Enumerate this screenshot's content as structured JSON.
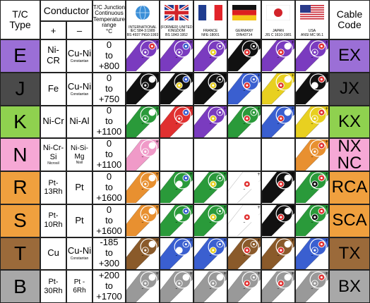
{
  "header": {
    "tc_type": "T/C\nType",
    "conductor": "Conductor",
    "plus": "+",
    "minus": "–",
    "range": "T/C Junction\nContinuous\nTemperature\nrange\n°C",
    "cable_code": "Cable\nCode"
  },
  "standards": [
    {
      "name": "INTERNATIONAL",
      "ref": "IEC 584-3:1989\nBS 4937 PtG0:1993",
      "icon": "globe-icon"
    },
    {
      "name": "(FORMER) UNITED KINGDOM",
      "ref": "BS 1843:1952",
      "icon": "uk-flag-icon"
    },
    {
      "name": "FRANCE",
      "ref": "NFE-18001",
      "icon": "france-flag-icon"
    },
    {
      "name": "GERMANY",
      "ref": "DIN43714",
      "icon": "germany-flag-icon"
    },
    {
      "name": "JAPAN",
      "ref": "JIS C 1610-1981",
      "icon": "japan-flag-icon"
    },
    {
      "name": "USA",
      "ref": "ANSI MC 96.1",
      "icon": "usa-flag-icon"
    }
  ],
  "rows": [
    {
      "type": "E",
      "plus": "Ni-CR",
      "plus_sub": "",
      "minus": "Cu-Ni",
      "minus_sub": "Constantan",
      "range": "0\nto\n+800",
      "code": "EX",
      "color": "#9b6fd6"
    },
    {
      "type": "J",
      "plus": "Fe",
      "plus_sub": "",
      "minus": "Cu-Ni",
      "minus_sub": "Constantan",
      "range": "0\nto\n+750",
      "code": "JX",
      "color": "#4a4a4a"
    },
    {
      "type": "K",
      "plus": "Ni-Cr",
      "plus_sub": "",
      "minus": "Ni-Al",
      "minus_sub": "",
      "range": "0\nto\n+1100",
      "code": "KX",
      "color": "#8fd14f"
    },
    {
      "type": "N",
      "plus": "Ni-Cr-Si",
      "plus_sub": "Nicrosil",
      "minus": "Ni-Si-Mg",
      "minus_sub": "Nisil",
      "range": "0\nto\n+1100",
      "code": "NX\nNC",
      "color": "#f6a8d5"
    },
    {
      "type": "R",
      "plus": "Pt-\n13Rh",
      "plus_sub": "",
      "minus": "Pt",
      "minus_sub": "",
      "range": "0\nto\n+1600",
      "code": "RCA",
      "color": "#f0a03e"
    },
    {
      "type": "S",
      "plus": "Pt-\n10Rh",
      "plus_sub": "",
      "minus": "Pt",
      "minus_sub": "",
      "range": "0\nto\n+1600",
      "code": "SCA",
      "color": "#f0a03e"
    },
    {
      "type": "T",
      "plus": "Cu",
      "plus_sub": "",
      "minus": "Cu-Ni",
      "minus_sub": "Constantan",
      "range": "-185\nto\n+300",
      "code": "TX",
      "color": "#9b6a3a"
    },
    {
      "type": "B",
      "plus": "Pt-\n30Rh",
      "plus_sub": "",
      "minus": "Pt -\n6Rh",
      "minus_sub": "",
      "range": "+200\nto\n+1700",
      "code": "BX",
      "color": "#a8a8a8"
    }
  ],
  "cables": [
    [
      [
        "#7a3bbf",
        "#7a3bbf",
        "#e03030"
      ],
      [
        "#7a3bbf",
        "#7a3bbf",
        "#3a5fd0"
      ],
      [
        "#7a3bbf",
        "#e8d020",
        "#7a3bbf"
      ],
      [
        "#111",
        "#e03030",
        "#111"
      ],
      [
        "#7a3bbf",
        "#e03030",
        "#fff"
      ],
      [
        "#7a3bbf",
        "#7a3bbf",
        "#e03030"
      ]
    ],
    [
      [
        "#111",
        "#111",
        "#fff"
      ],
      [
        "#111",
        "#e8d020",
        "#3a5fd0"
      ],
      [
        "#111",
        "#e8d020",
        "#111"
      ],
      [
        "#3a5fd0",
        "#e03030",
        "#3a5fd0"
      ],
      [
        "#e8d020",
        "#e03030",
        "#fff"
      ],
      [
        "#111",
        "#fff",
        "#e03030"
      ]
    ],
    [
      [
        "#2a9a3a",
        "#2a9a3a",
        "#fff"
      ],
      [
        "#e03030",
        "#e03030",
        "#3a5fd0"
      ],
      [
        "#7a3bbf",
        "#e8d020",
        "#7a3bbf"
      ],
      [
        "#2a9a3a",
        "#e03030",
        "#2a9a3a"
      ],
      [
        "#3a5fd0",
        "#e03030",
        "#fff"
      ],
      [
        "#e8d020",
        "#e8d020",
        "#e03030"
      ]
    ],
    [
      [
        "#f09ac8",
        "#f09ac8",
        "#fff"
      ],
      null,
      null,
      null,
      null,
      [
        "#e89030",
        "#e89030",
        "#e03030"
      ]
    ],
    [
      [
        "#e89030",
        "#e89030",
        "#fff"
      ],
      [
        "#2a9a3a",
        "#fff",
        "#3a5fd0"
      ],
      [
        "#2a9a3a",
        "#e8d020",
        "#2a9a3a"
      ],
      [
        "#fff",
        "#e03030",
        "#fff"
      ],
      [
        "#111",
        "#e03030",
        "#fff"
      ],
      [
        "#2a9a3a",
        "#111",
        "#e03030"
      ]
    ],
    [
      [
        "#e89030",
        "#e89030",
        "#fff"
      ],
      [
        "#2a9a3a",
        "#fff",
        "#3a5fd0"
      ],
      [
        "#2a9a3a",
        "#e8d020",
        "#2a9a3a"
      ],
      [
        "#fff",
        "#e03030",
        "#fff"
      ],
      [
        "#111",
        "#e03030",
        "#fff"
      ],
      [
        "#2a9a3a",
        "#111",
        "#e03030"
      ]
    ],
    [
      [
        "#8a5a2a",
        "#8a5a2a",
        "#fff"
      ],
      [
        "#3a5fd0",
        "#fff",
        "#3a5fd0"
      ],
      [
        "#3a5fd0",
        "#e8d020",
        "#3a5fd0"
      ],
      [
        "#8a5a2a",
        "#e03030",
        "#8a5a2a"
      ],
      [
        "#8a5a2a",
        "#e03030",
        "#fff"
      ],
      [
        "#3a5fd0",
        "#3a5fd0",
        "#e03030"
      ]
    ],
    [
      [
        "#999",
        "#999",
        "#fff"
      ],
      [
        "#999",
        "#999",
        "#fff"
      ],
      [
        "#999",
        "#999",
        "#fff"
      ],
      [
        "#999",
        "#e03030",
        "#999"
      ],
      [
        "#999",
        "#e03030",
        "#fff"
      ],
      [
        "#999",
        "#999",
        "#e03030"
      ]
    ]
  ]
}
